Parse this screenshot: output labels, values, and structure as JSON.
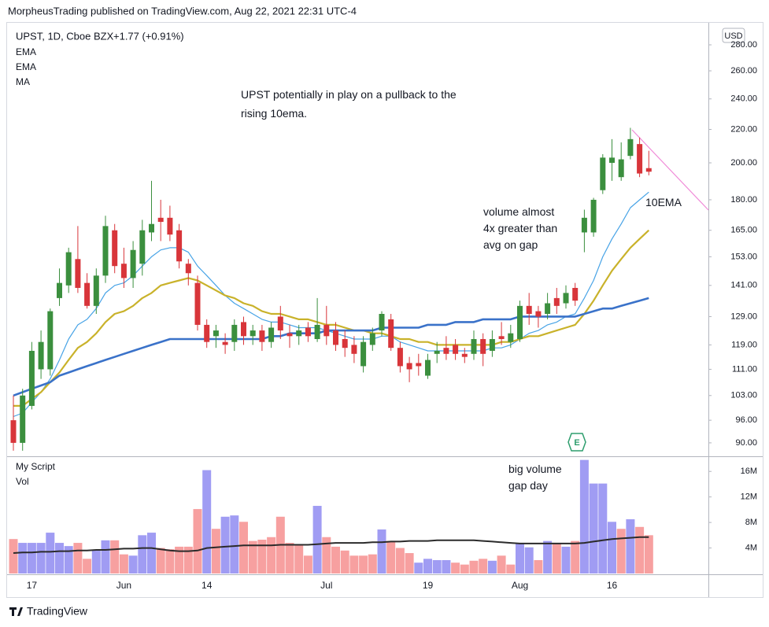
{
  "header": {
    "published": "MorpheusTrading published on TradingView.com, Aug 22, 2021 22:31 UTC-4",
    "brand": "TradingView",
    "earnings_marker": "E"
  },
  "chart_data": [
    {
      "type": "candlestick",
      "title": "UPST, 1D, Cboe BZX",
      "subtitle": "+1.77 (+0.91%)",
      "axis_label": "USD",
      "categories": [
        null,
        null,
        "17",
        null,
        null,
        null,
        null,
        null,
        null,
        null,
        null,
        null,
        "Jun",
        null,
        null,
        null,
        null,
        null,
        null,
        null,
        null,
        "14",
        null,
        null,
        null,
        null,
        null,
        null,
        null,
        null,
        null,
        null,
        null,
        null,
        "Jul",
        null,
        null,
        null,
        null,
        null,
        null,
        null,
        null,
        null,
        null,
        "19",
        null,
        null,
        null,
        null,
        null,
        null,
        null,
        null,
        null,
        "Aug",
        null,
        null,
        null,
        null,
        null,
        null,
        null,
        null,
        null,
        "16",
        null,
        null,
        null,
        null
      ],
      "open": [
        96,
        90,
        100,
        111,
        111,
        136,
        141,
        152,
        142,
        133,
        145,
        165,
        150,
        144,
        150,
        164,
        171,
        171,
        165,
        150,
        142,
        126,
        122,
        120,
        120,
        127,
        122,
        124,
        120,
        129,
        123,
        122,
        125,
        121,
        126,
        124,
        121,
        119,
        112,
        119,
        124,
        128,
        118,
        113,
        113,
        109,
        116,
        118,
        119,
        116,
        116,
        121,
        117,
        122,
        120,
        121,
        133,
        131,
        130,
        136,
        134,
        140,
        164,
        164,
        185,
        200,
        192,
        204,
        211,
        197
      ],
      "high": [
        103,
        105,
        120,
        124,
        132,
        148,
        157,
        167,
        146,
        148,
        172,
        168,
        157,
        160,
        170,
        190,
        180,
        177,
        168,
        152,
        145,
        128,
        126,
        123,
        128,
        129,
        126,
        126,
        127,
        133,
        126,
        126,
        127,
        136,
        133,
        127,
        124,
        122,
        122,
        125,
        131,
        130,
        120,
        115,
        116,
        116,
        120,
        122,
        121,
        118,
        124,
        123,
        124,
        127,
        126,
        135,
        138,
        133,
        138,
        140,
        141,
        142,
        175,
        181,
        205,
        214,
        212,
        221,
        215,
        207
      ],
      "low": [
        88,
        88,
        99,
        108,
        109,
        133,
        138,
        138,
        132,
        130,
        142,
        146,
        140,
        140,
        145,
        160,
        160,
        160,
        148,
        141,
        124,
        118,
        118,
        116,
        117,
        119,
        119,
        117,
        118,
        121,
        118,
        119,
        120,
        120,
        119,
        117,
        115,
        113,
        110,
        117,
        122,
        117,
        110,
        107,
        109,
        108,
        113,
        114,
        114,
        113,
        114,
        112,
        115,
        119,
        118,
        120,
        126,
        125,
        128,
        130,
        132,
        133,
        155,
        162,
        183,
        190,
        190,
        202,
        192,
        193
      ],
      "close": [
        90,
        103,
        117,
        120,
        131,
        142,
        155,
        140,
        133,
        145,
        167,
        149,
        144,
        156,
        165,
        168,
        169,
        163,
        151,
        146,
        126,
        120,
        124,
        119,
        126,
        122,
        124,
        120,
        125,
        124,
        122,
        124,
        122,
        126,
        122,
        119,
        118,
        116,
        120,
        123,
        130,
        118,
        112,
        111,
        112,
        114,
        117,
        116,
        116,
        115,
        121,
        116,
        121,
        121,
        123,
        133,
        130,
        129,
        134,
        133,
        138,
        135,
        171,
        180,
        203,
        203,
        202,
        214,
        194,
        195
      ],
      "up_color": "#3b8f3e",
      "down_color": "#d8353a",
      "series": [
        {
          "name": "EMA",
          "color": "#47a3e6",
          "width": 1.2,
          "values": [
            97,
            98,
            101,
            104,
            108,
            114,
            121,
            126,
            128,
            132,
            138,
            141,
            142,
            145,
            149,
            153,
            156,
            157,
            157,
            155,
            149,
            145,
            141,
            137,
            134,
            132,
            130,
            128,
            127,
            127,
            126,
            125,
            125,
            125,
            124,
            123,
            122,
            121,
            121,
            121,
            122,
            122,
            120,
            119,
            118,
            117,
            117,
            117,
            117,
            117,
            117,
            117,
            118,
            118,
            119,
            121,
            123,
            124,
            126,
            127,
            129,
            130,
            136,
            143,
            153,
            161,
            168,
            176,
            180,
            184
          ]
        },
        {
          "name": "EMA",
          "color": "#c9b22a",
          "width": 2.2,
          "values": [
            100,
            100,
            102,
            104,
            107,
            110,
            114,
            118,
            120,
            123,
            127,
            130,
            131,
            133,
            136,
            138,
            141,
            142,
            143,
            144,
            143,
            141,
            139,
            137,
            136,
            134,
            133,
            131,
            130,
            130,
            129,
            128,
            128,
            127,
            126,
            126,
            125,
            124,
            124,
            123,
            123,
            122,
            121,
            121,
            120,
            120,
            119,
            119,
            119,
            119,
            119,
            119,
            119,
            120,
            120,
            121,
            122,
            122,
            123,
            124,
            125,
            126,
            130,
            135,
            141,
            147,
            152,
            157,
            161,
            165
          ]
        },
        {
          "name": "MA",
          "color": "#3a72c9",
          "width": 2.6,
          "values": [
            103,
            104,
            105,
            106,
            107,
            109,
            110,
            111,
            112,
            113,
            114,
            115,
            116,
            117,
            118,
            119,
            120,
            121,
            121,
            121,
            121,
            121,
            121,
            121,
            121,
            121,
            121,
            121,
            122,
            122,
            123,
            123,
            123,
            123,
            124,
            124,
            124,
            124,
            124,
            124,
            125,
            125,
            125,
            125,
            125,
            126,
            126,
            126,
            127,
            127,
            127,
            128,
            128,
            128,
            128,
            129,
            129,
            129,
            129,
            129,
            129,
            129,
            130,
            131,
            132,
            132,
            133,
            134,
            135,
            136
          ]
        }
      ],
      "log_scale": true,
      "grid": false,
      "ylim": [
        87.2,
        292.2
      ],
      "yticks": [
        {
          "value": 90,
          "label": "90.00"
        },
        {
          "value": 96,
          "label": "96.00"
        },
        {
          "value": 103,
          "label": "103.00"
        },
        {
          "value": 111,
          "label": "111.00"
        },
        {
          "value": 119,
          "label": "119.00"
        },
        {
          "value": 129,
          "label": "129.00"
        },
        {
          "value": 141,
          "label": "141.00"
        },
        {
          "value": 153,
          "label": "153.00"
        },
        {
          "value": 165,
          "label": "165.00"
        },
        {
          "value": 180,
          "label": "180.00"
        },
        {
          "value": 200,
          "label": "200.00"
        },
        {
          "value": 220,
          "label": "220.00"
        },
        {
          "value": 240,
          "label": "240.00"
        },
        {
          "value": 260,
          "label": "260.00"
        },
        {
          "value": 280,
          "label": "280.00"
        }
      ],
      "annotations": [
        "UPST potentially in play on a pullback to the rising 10ema.",
        "volume almost 4x greater than avg on gap",
        "10EMA"
      ]
    },
    {
      "type": "bar",
      "title": "My Script",
      "series": [
        {
          "name": "Vol",
          "values": [
            5.4,
            4.8,
            4.8,
            4.8,
            6.4,
            4.8,
            4.3,
            4.8,
            2.3,
            3.6,
            5.2,
            5.2,
            3.0,
            2.8,
            6.0,
            6.4,
            4.0,
            3.8,
            4.2,
            4.2,
            10.1,
            16.2,
            7.0,
            8.9,
            9.1,
            8.1,
            5.1,
            5.3,
            5.7,
            8.9,
            4.8,
            4.6,
            2.8,
            10.6,
            5.7,
            4.2,
            3.6,
            2.8,
            2.8,
            3.0,
            6.9,
            5.1,
            4.0,
            3.2,
            1.7,
            2.3,
            2.1,
            2.1,
            1.7,
            1.4,
            2.0,
            2.3,
            2.0,
            2.8,
            1.4,
            4.8,
            4.1,
            2.1,
            5.1,
            4.8,
            4.2,
            5.1,
            17.8,
            14.1,
            14.1,
            8.1,
            7.0,
            8.5,
            7.3,
            6.0
          ],
          "colors": [
            "#f7a0a0",
            "#a09cf3",
            "#a09cf3",
            "#a09cf3",
            "#a09cf3",
            "#a09cf3",
            "#a09cf3",
            "#f7a0a0",
            "#f7a0a0",
            "#a09cf3",
            "#a09cf3",
            "#f7a0a0",
            "#f7a0a0",
            "#a09cf3",
            "#a09cf3",
            "#a09cf3",
            "#f7a0a0",
            "#f7a0a0",
            "#f7a0a0",
            "#f7a0a0",
            "#f7a0a0",
            "#a09cf3",
            "#f7a0a0",
            "#a09cf3",
            "#a09cf3",
            "#f7a0a0",
            "#f7a0a0",
            "#f7a0a0",
            "#f7a0a0",
            "#f7a0a0",
            "#f7a0a0",
            "#f7a0a0",
            "#f7a0a0",
            "#a09cf3",
            "#f7a0a0",
            "#f7a0a0",
            "#f7a0a0",
            "#f7a0a0",
            "#f7a0a0",
            "#f7a0a0",
            "#a09cf3",
            "#f7a0a0",
            "#f7a0a0",
            "#f7a0a0",
            "#a09cf3",
            "#a09cf3",
            "#a09cf3",
            "#a09cf3",
            "#f7a0a0",
            "#f7a0a0",
            "#f7a0a0",
            "#f7a0a0",
            "#a09cf3",
            "#f7a0a0",
            "#f7a0a0",
            "#a09cf3",
            "#a09cf3",
            "#f7a0a0",
            "#a09cf3",
            "#f7a0a0",
            "#a09cf3",
            "#f7a0a0",
            "#a09cf3",
            "#a09cf3",
            "#a09cf3",
            "#a09cf3",
            "#f7a0a0",
            "#a09cf3",
            "#f7a0a0",
            "#f7a0a0"
          ]
        },
        {
          "type": "line",
          "color": "#2b2b2b",
          "width": 2,
          "values": [
            3.2,
            3.3,
            3.3,
            3.4,
            3.4,
            3.5,
            3.5,
            3.6,
            3.6,
            3.7,
            3.7,
            3.8,
            3.9,
            3.9,
            4.0,
            4.0,
            3.8,
            3.6,
            3.5,
            3.5,
            3.6,
            4.0,
            4.1,
            4.2,
            4.3,
            4.4,
            4.4,
            4.4,
            4.4,
            4.5,
            4.5,
            4.5,
            4.5,
            4.6,
            4.7,
            4.8,
            4.8,
            4.8,
            4.8,
            4.9,
            4.9,
            5.0,
            5.0,
            5.1,
            5.1,
            5.1,
            5.2,
            5.2,
            5.2,
            5.2,
            5.2,
            5.1,
            5.0,
            4.9,
            4.8,
            4.7,
            4.7,
            4.7,
            4.7,
            4.7,
            4.7,
            4.7,
            4.8,
            5.0,
            5.2,
            5.4,
            5.5,
            5.6,
            5.7,
            5.7
          ]
        }
      ],
      "ylim": [
        0,
        18
      ],
      "yticks": [
        {
          "value": 4,
          "label": "4M"
        },
        {
          "value": 8,
          "label": "8M"
        },
        {
          "value": 12,
          "label": "12M"
        },
        {
          "value": 16,
          "label": "16M"
        }
      ],
      "annotations": [
        "big volume gap day"
      ]
    }
  ]
}
